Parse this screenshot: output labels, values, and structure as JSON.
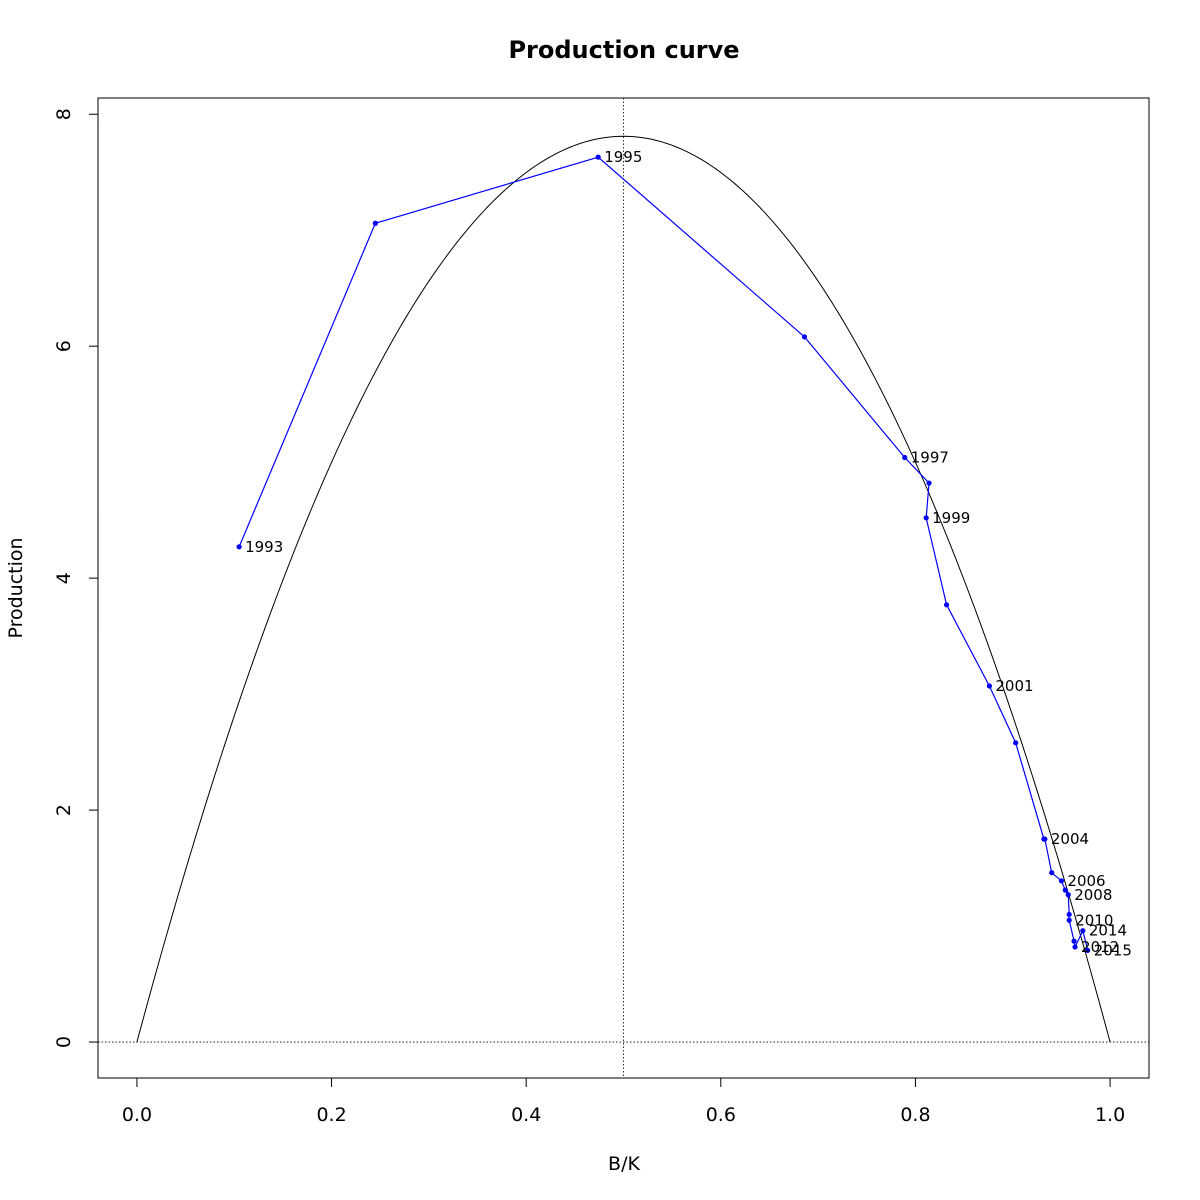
{
  "chart_data": {
    "type": "line",
    "title": "Production curve",
    "xlabel": "B/K",
    "ylabel": "Production",
    "xlim": [
      -0.04,
      1.04
    ],
    "ylim": [
      -0.31,
      8.14
    ],
    "x_ticks": [
      0,
      0.2,
      0.4,
      0.6,
      0.8,
      1
    ],
    "x_tick_labels": [
      "0.0",
      "0.2",
      "0.4",
      "0.6",
      "0.8",
      "1.0"
    ],
    "y_ticks": [
      0,
      2,
      4,
      6,
      8
    ],
    "y_tick_labels": [
      "0",
      "2",
      "4",
      "6",
      "8"
    ],
    "grid": false,
    "reference_lines": {
      "vertical_x": 0.5,
      "horizontal_y": 0,
      "style": "dotted"
    },
    "model_curve": {
      "type": "parabola",
      "x_range": [
        0,
        1
      ],
      "peak_x": 0.5,
      "peak_y": 7.81,
      "color": "#000000"
    },
    "series": [
      {
        "color": "#0000ff",
        "points": [
          {
            "x": 0.105,
            "y": 4.27,
            "label": "1993"
          },
          {
            "x": 0.245,
            "y": 7.06,
            "label": ""
          },
          {
            "x": 0.474,
            "y": 7.63,
            "label": "1995"
          },
          {
            "x": 0.686,
            "y": 6.08,
            "label": ""
          },
          {
            "x": 0.789,
            "y": 5.04,
            "label": "1997"
          },
          {
            "x": 0.814,
            "y": 4.82,
            "label": ""
          },
          {
            "x": 0.811,
            "y": 4.52,
            "label": "1999"
          },
          {
            "x": 0.832,
            "y": 3.77,
            "label": ""
          },
          {
            "x": 0.876,
            "y": 3.07,
            "label": "2001"
          },
          {
            "x": 0.903,
            "y": 2.58,
            "label": ""
          },
          {
            "x": 0.932,
            "y": 1.75,
            "label": ""
          },
          {
            "x": 0.933,
            "y": 1.75,
            "label": "2004"
          },
          {
            "x": 0.94,
            "y": 1.46,
            "label": ""
          },
          {
            "x": 0.95,
            "y": 1.39,
            "label": "2006"
          },
          {
            "x": 0.954,
            "y": 1.31,
            "label": ""
          },
          {
            "x": 0.957,
            "y": 1.27,
            "label": "2008"
          },
          {
            "x": 0.958,
            "y": 1.1,
            "label": ""
          },
          {
            "x": 0.958,
            "y": 1.05,
            "label": "2010"
          },
          {
            "x": 0.963,
            "y": 0.87,
            "label": ""
          },
          {
            "x": 0.964,
            "y": 0.82,
            "label": "2012"
          },
          {
            "x": 0.972,
            "y": 0.96,
            "label": "2014"
          },
          {
            "x": 0.977,
            "y": 0.79,
            "label": "2015"
          }
        ]
      }
    ]
  }
}
